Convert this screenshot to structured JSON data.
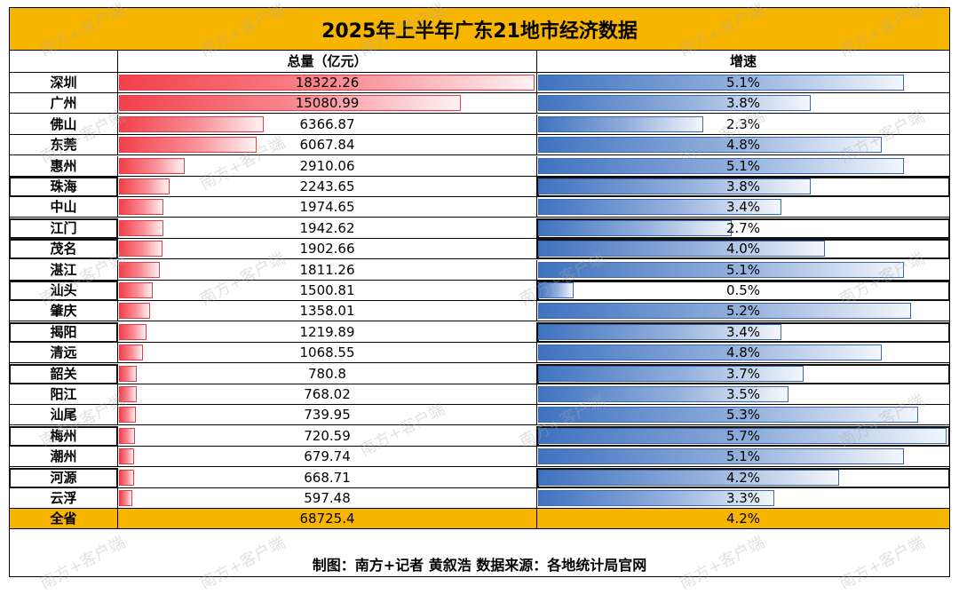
{
  "title": "2025年上半年广东21地市经济数据",
  "watermark": "南方+客户端",
  "headers": {
    "city": "",
    "total": "总量（亿元）",
    "growth": "增速"
  },
  "colors": {
    "header": "#f7b500",
    "total_bar": "#f2404a",
    "growth_bar": "#3f72bf"
  },
  "chart_data": {
    "type": "bar",
    "title": "2025年上半年广东21地市经济数据",
    "categories": [
      "深圳",
      "广州",
      "佛山",
      "东莞",
      "惠州",
      "珠海",
      "中山",
      "江门",
      "茂名",
      "湛江",
      "汕头",
      "肇庆",
      "揭阳",
      "清远",
      "韶关",
      "阳江",
      "汕尾",
      "梅州",
      "潮州",
      "河源",
      "云浮"
    ],
    "series": [
      {
        "name": "总量（亿元）",
        "values": [
          18322.26,
          15080.99,
          6366.87,
          6067.84,
          2910.06,
          2243.65,
          1974.65,
          1942.62,
          1902.66,
          1811.26,
          1500.81,
          1358.01,
          1219.89,
          1068.55,
          780.8,
          768.02,
          739.95,
          720.59,
          679.74,
          668.71,
          597.48
        ],
        "labels": [
          "18322.26",
          "15080.99",
          "6366.87",
          "6067.84",
          "2910.06",
          "2243.65",
          "1974.65",
          "1942.62",
          "1902.66",
          "1811.26",
          "1500.81",
          "1358.01",
          "1219.89",
          "1068.55",
          "780.8",
          "768.02",
          "739.95",
          "720.59",
          "679.74",
          "668.71",
          "597.48"
        ],
        "max": 18322.26
      },
      {
        "name": "增速",
        "values": [
          5.1,
          3.8,
          2.3,
          4.8,
          5.1,
          3.8,
          3.4,
          2.7,
          4.0,
          5.1,
          0.5,
          5.2,
          3.4,
          4.8,
          3.7,
          3.5,
          5.3,
          5.7,
          5.1,
          4.2,
          3.3
        ],
        "labels": [
          "5.1%",
          "3.8%",
          "2.3%",
          "4.8%",
          "5.1%",
          "3.8%",
          "3.4%",
          "2.7%",
          "4.0%",
          "5.1%",
          "0.5%",
          "5.2%",
          "3.4%",
          "4.8%",
          "3.7%",
          "3.5%",
          "5.3%",
          "5.7%",
          "5.1%",
          "4.2%",
          "3.3%"
        ],
        "max": 5.7
      }
    ],
    "boxed_rows": [
      "珠海",
      "江门",
      "茂名",
      "汕头",
      "揭阳",
      "韶关",
      "梅州",
      "河源"
    ],
    "summary": {
      "label": "全省",
      "total": "68725.4",
      "growth": "4.2%"
    }
  },
  "footer": "制图：南方+记者 黄叙浩 数据来源：各地统计局官网"
}
